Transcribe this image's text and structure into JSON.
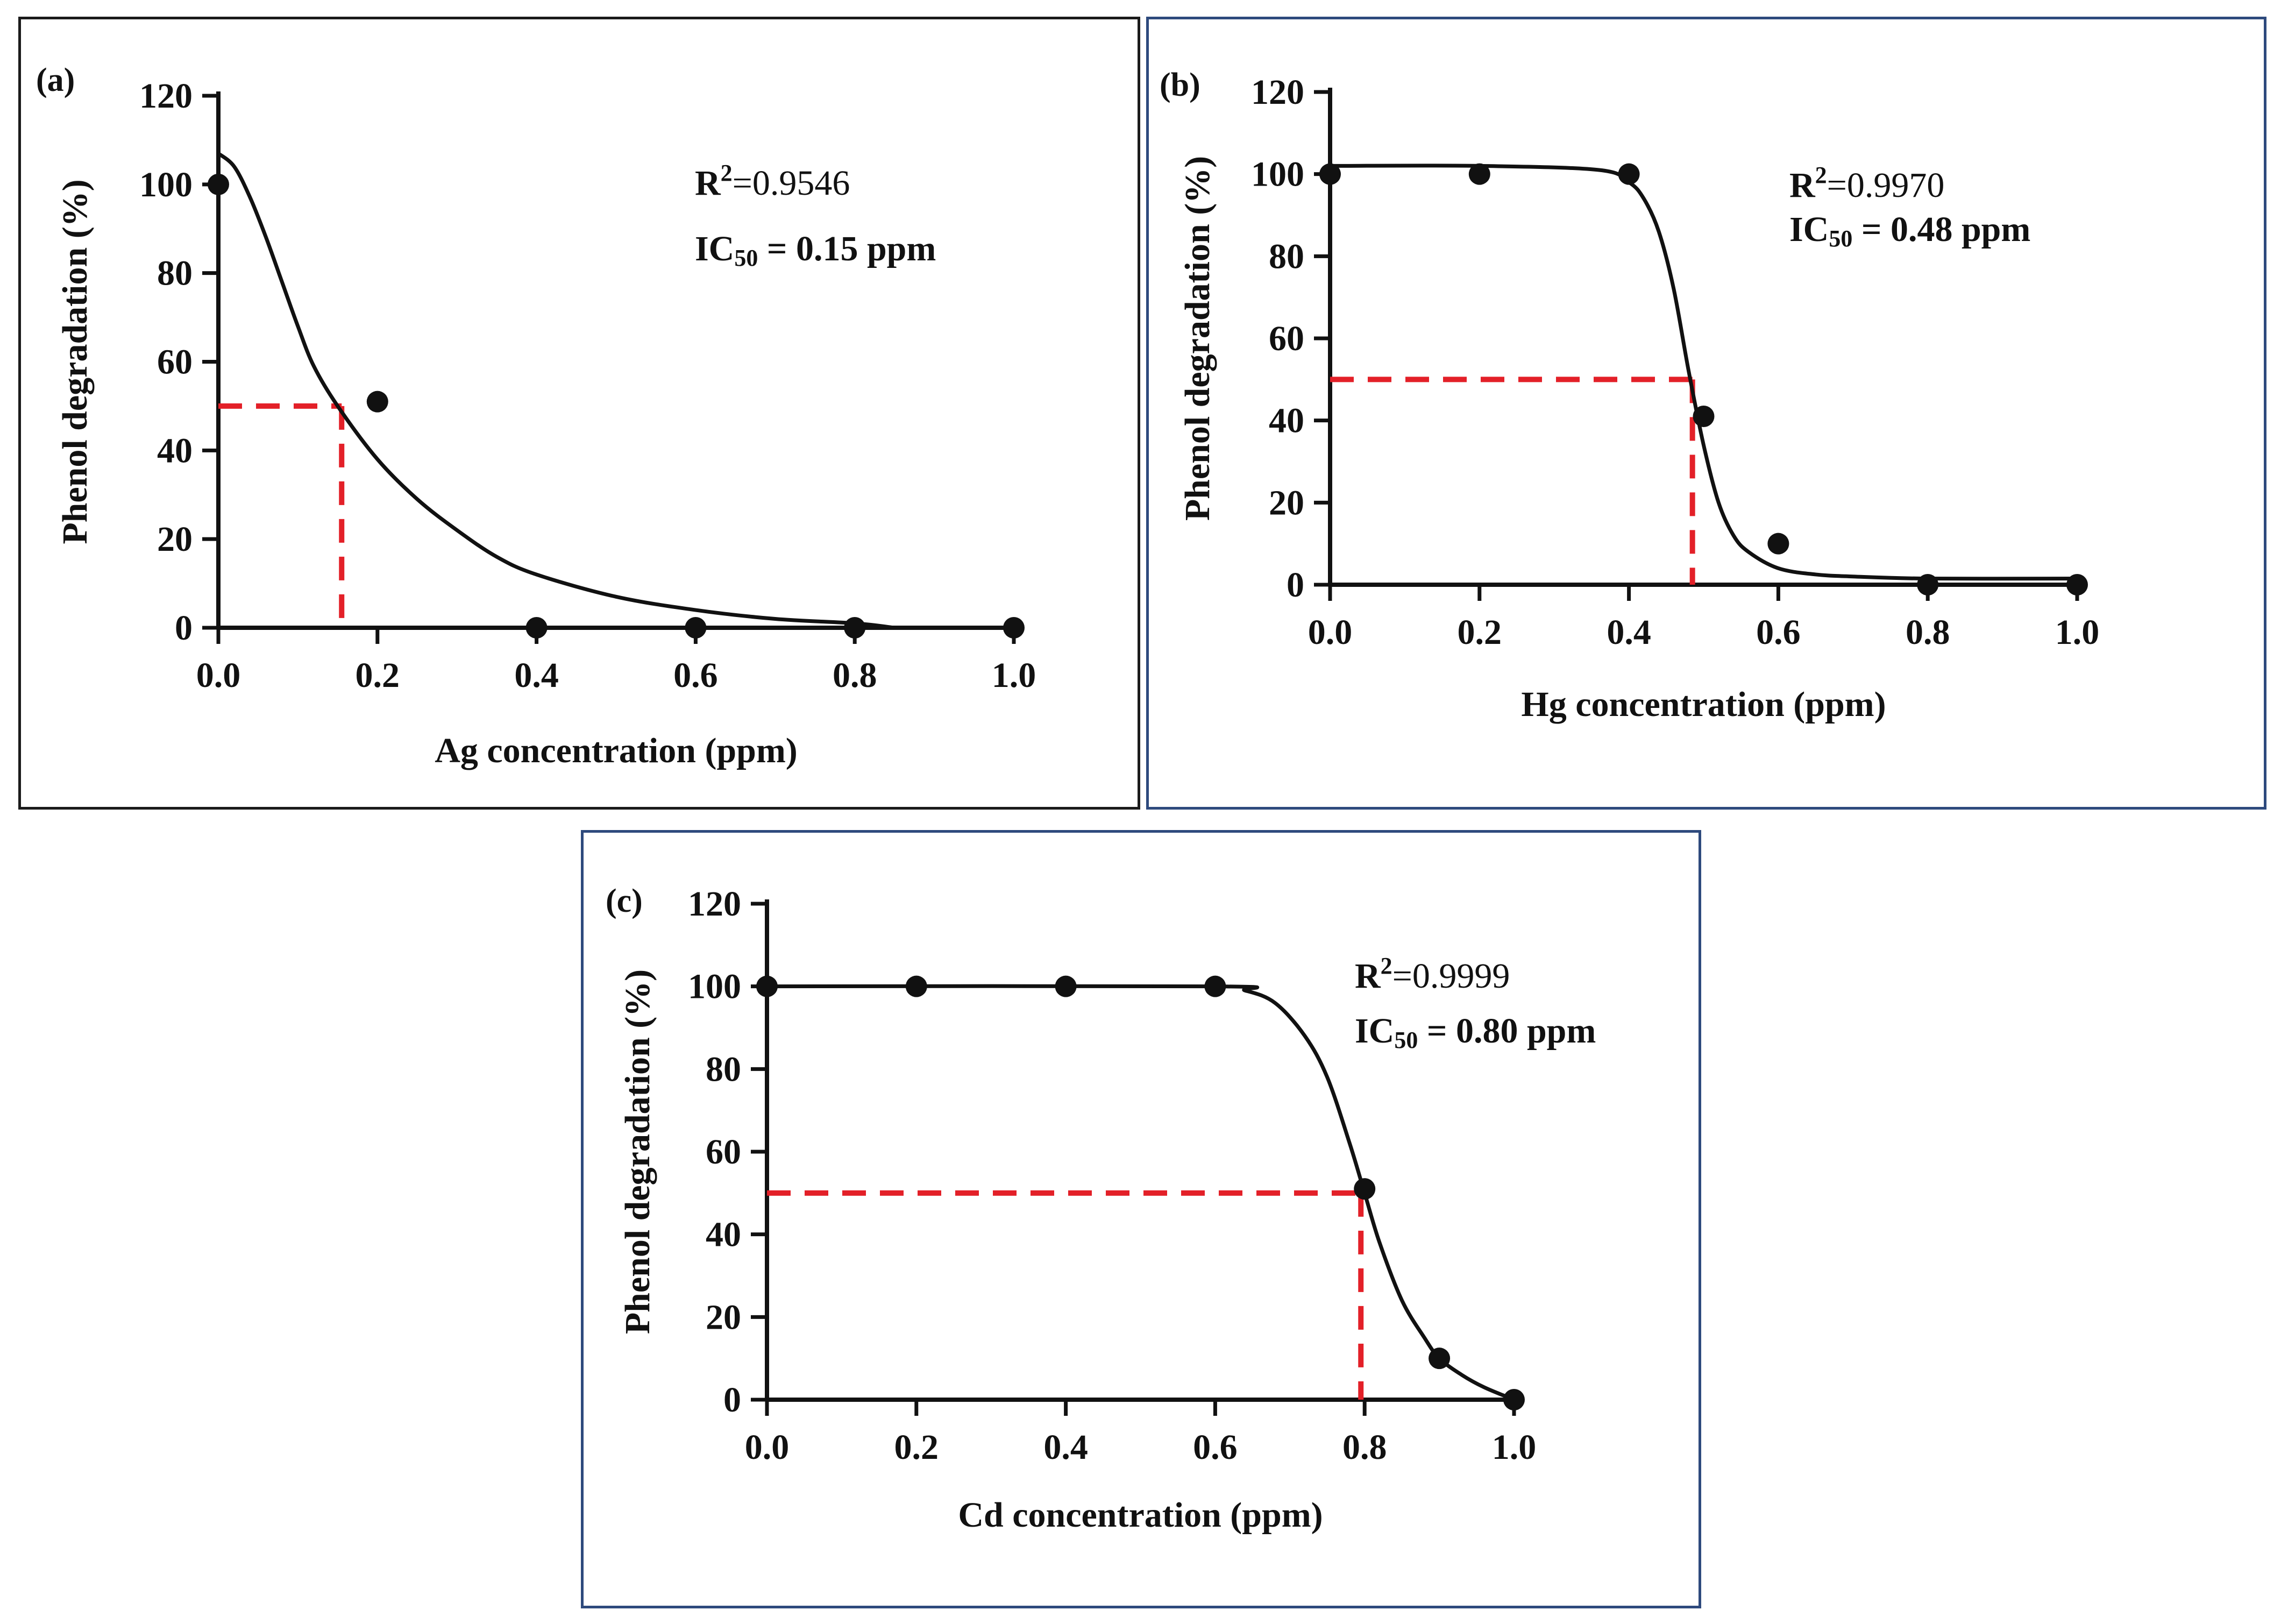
{
  "colors": {
    "ink": "#111111",
    "ic50_guide": "#e32028",
    "frame_a": "#1b1b1b",
    "frame_bc": "#2e4a7d"
  },
  "chart_data": [
    {
      "id": "a",
      "type": "scatter",
      "panel_label": "(a)",
      "xlabel": "Ag concentration (ppm)",
      "ylabel": "Phenol degradation (%)",
      "xlim": [
        0,
        1.0
      ],
      "ylim": [
        0,
        120
      ],
      "x_ticks": [
        "0.0",
        "0.2",
        "0.4",
        "0.6",
        "0.8",
        "1.0"
      ],
      "y_ticks": [
        "0",
        "20",
        "40",
        "60",
        "80",
        "100",
        "120"
      ],
      "points": {
        "x": [
          0.0,
          0.2,
          0.4,
          0.6,
          0.8,
          1.0
        ],
        "y": [
          100,
          51,
          0,
          0,
          0,
          0
        ]
      },
      "fit_curve": {
        "x": [
          0.0,
          0.02,
          0.04,
          0.06,
          0.08,
          0.1,
          0.12,
          0.15,
          0.2,
          0.25,
          0.3,
          0.35,
          0.4,
          0.5,
          0.6,
          0.7,
          0.8,
          0.85
        ],
        "y": [
          107,
          104,
          97,
          88,
          78,
          68,
          59,
          50,
          38,
          29,
          22,
          16,
          12,
          7,
          4,
          2,
          1,
          0
        ]
      },
      "ic50_guide": {
        "x": 0.155,
        "y": 50
      },
      "r2_label": "R",
      "r2_exp": "2",
      "r2_value": "=0.9546",
      "ic_label": "IC",
      "ic_sub": "50",
      "ic_value": " = 0.15 ppm"
    },
    {
      "id": "b",
      "type": "scatter",
      "panel_label": "(b)",
      "xlabel": "Hg concentration (ppm)",
      "ylabel": "Phenol degradation (%)",
      "xlim": [
        0,
        1.0
      ],
      "ylim": [
        0,
        120
      ],
      "x_ticks": [
        "0.0",
        "0.2",
        "0.4",
        "0.6",
        "0.8",
        "1.0"
      ],
      "y_ticks": [
        "0",
        "20",
        "40",
        "60",
        "80",
        "100",
        "120"
      ],
      "points": {
        "x": [
          0.0,
          0.2,
          0.4,
          0.5,
          0.6,
          0.8,
          1.0
        ],
        "y": [
          100,
          100,
          100,
          41,
          10,
          0,
          0
        ]
      },
      "fit_curve": {
        "x": [
          0.0,
          0.2,
          0.36,
          0.4,
          0.42,
          0.44,
          0.46,
          0.48,
          0.5,
          0.52,
          0.54,
          0.56,
          0.6,
          0.65,
          0.7,
          0.8,
          1.0
        ],
        "y": [
          102,
          102,
          101,
          98,
          94,
          86,
          72,
          52,
          34,
          20,
          12,
          8,
          4,
          2.5,
          2,
          1.5,
          1.5
        ]
      },
      "ic50_guide": {
        "x": 0.485,
        "y": 50
      },
      "r2_label": "R",
      "r2_exp": "2",
      "r2_value": "=0.9970",
      "ic_label": "IC",
      "ic_sub": "50",
      "ic_value": " = 0.48 ppm"
    },
    {
      "id": "c",
      "type": "scatter",
      "panel_label": "(c)",
      "xlabel": "Cd concentration (ppm)",
      "ylabel": "Phenol degradation (%)",
      "xlim": [
        0,
        1.0
      ],
      "ylim": [
        0,
        120
      ],
      "x_ticks": [
        "0.0",
        "0.2",
        "0.4",
        "0.6",
        "0.8",
        "1.0"
      ],
      "y_ticks": [
        "0",
        "20",
        "40",
        "60",
        "80",
        "100",
        "120"
      ],
      "points": {
        "x": [
          0.0,
          0.2,
          0.4,
          0.6,
          0.8,
          0.9,
          1.0
        ],
        "y": [
          100,
          100,
          100,
          100,
          51,
          10,
          0
        ]
      },
      "fit_curve": {
        "x": [
          0.0,
          0.6,
          0.64,
          0.68,
          0.72,
          0.75,
          0.78,
          0.8,
          0.82,
          0.85,
          0.88,
          0.9,
          0.93,
          0.96,
          1.0
        ],
        "y": [
          100,
          100,
          99,
          96,
          88,
          78,
          62,
          50,
          38,
          24,
          15,
          10,
          6,
          3,
          0
        ]
      },
      "ic50_guide": {
        "x": 0.795,
        "y": 50
      },
      "r2_label": "R",
      "r2_exp": "2",
      "r2_value": "=0.9999",
      "ic_label": "IC",
      "ic_sub": "50",
      "ic_value": " = 0.80 ppm"
    }
  ]
}
